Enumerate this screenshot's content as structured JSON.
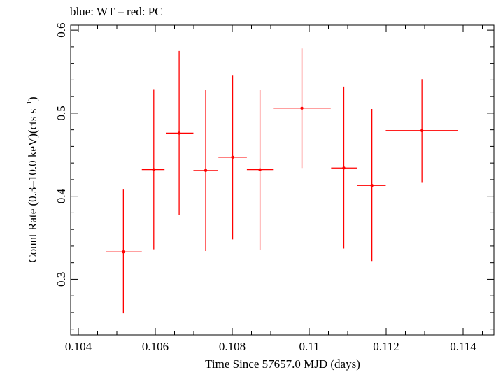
{
  "header": {
    "title": "blue: WT – red: PC"
  },
  "chart_data": {
    "type": "scatter",
    "title": "blue: WT – red: PC",
    "xlabel": "Time Since 57657.0 MJD (days)",
    "ylabel_main": "Count Rate (0.3–10.0 keV)(cts s",
    "ylabel_sup": "−1",
    "ylabel_tail": ")",
    "xlim": [
      0.1038,
      0.1148
    ],
    "ylim": [
      0.233,
      0.606
    ],
    "xticks": [
      {
        "value": 0.104,
        "label": "0.104"
      },
      {
        "value": 0.106,
        "label": "0.106"
      },
      {
        "value": 0.108,
        "label": "0.108"
      },
      {
        "value": 0.11,
        "label": "0.11"
      },
      {
        "value": 0.112,
        "label": "0.112"
      },
      {
        "value": 0.114,
        "label": "0.114"
      }
    ],
    "yticks": [
      {
        "value": 0.3,
        "label": "0.3"
      },
      {
        "value": 0.4,
        "label": "0.4"
      },
      {
        "value": 0.5,
        "label": "0.5"
      },
      {
        "value": 0.6,
        "label": "0.6"
      }
    ],
    "x_minor_step": 0.0005,
    "y_minor_step": 0.02,
    "grid": false,
    "series": [
      {
        "color": "#ff0000",
        "points": [
          {
            "x": 0.10517,
            "y": 0.333,
            "xlo": 0.10472,
            "xhi": 0.10565,
            "ylo": 0.259,
            "yhi": 0.408
          },
          {
            "x": 0.10596,
            "y": 0.432,
            "xlo": 0.10565,
            "xhi": 0.10624,
            "ylo": 0.336,
            "yhi": 0.529
          },
          {
            "x": 0.10662,
            "y": 0.476,
            "xlo": 0.10628,
            "xhi": 0.10699,
            "ylo": 0.377,
            "yhi": 0.575
          },
          {
            "x": 0.10731,
            "y": 0.431,
            "xlo": 0.10699,
            "xhi": 0.10763,
            "ylo": 0.334,
            "yhi": 0.528
          },
          {
            "x": 0.10801,
            "y": 0.447,
            "xlo": 0.10764,
            "xhi": 0.10838,
            "ylo": 0.348,
            "yhi": 0.546
          },
          {
            "x": 0.10872,
            "y": 0.432,
            "xlo": 0.10838,
            "xhi": 0.10906,
            "ylo": 0.335,
            "yhi": 0.528
          },
          {
            "x": 0.10981,
            "y": 0.506,
            "xlo": 0.10906,
            "xhi": 0.11056,
            "ylo": 0.434,
            "yhi": 0.578
          },
          {
            "x": 0.1109,
            "y": 0.434,
            "xlo": 0.11057,
            "xhi": 0.11124,
            "ylo": 0.337,
            "yhi": 0.532
          },
          {
            "x": 0.11163,
            "y": 0.413,
            "xlo": 0.11124,
            "xhi": 0.11199,
            "ylo": 0.322,
            "yhi": 0.505
          },
          {
            "x": 0.11293,
            "y": 0.479,
            "xlo": 0.11199,
            "xhi": 0.11387,
            "ylo": 0.417,
            "yhi": 0.541
          }
        ]
      }
    ]
  }
}
